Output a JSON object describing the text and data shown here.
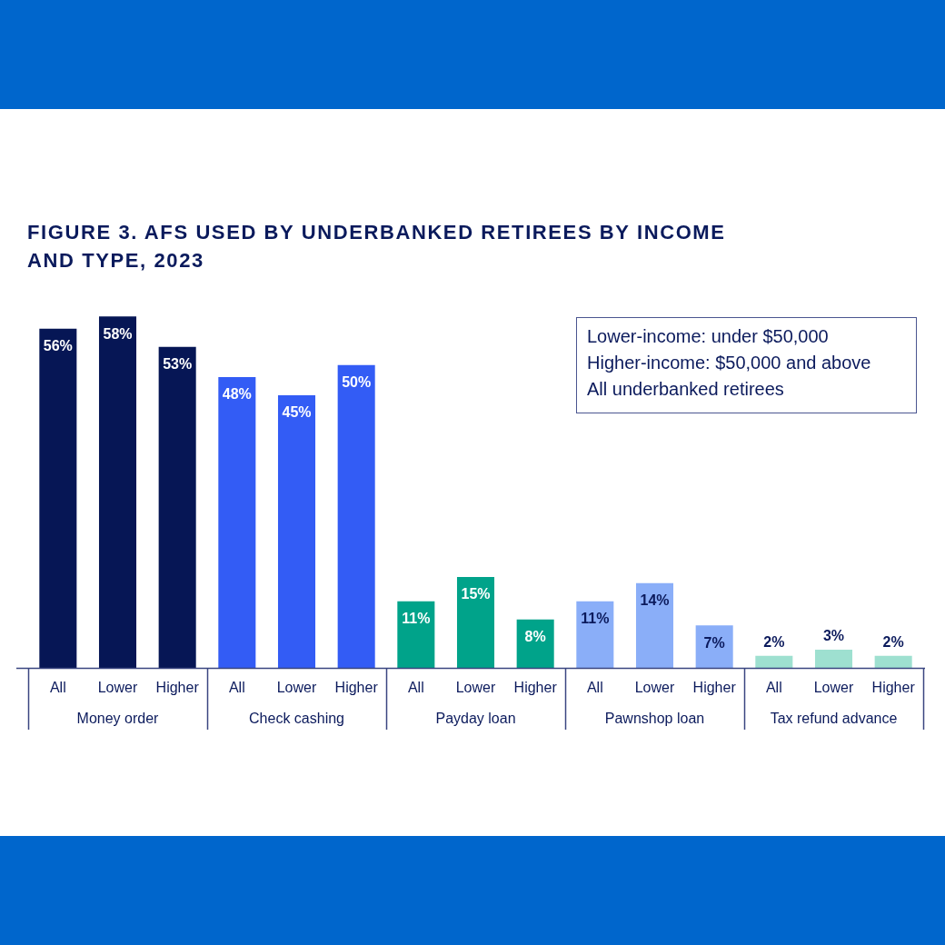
{
  "chart_data": {
    "type": "bar",
    "title": "FIGURE 3. AFS USED BY UNDERBANKED RETIREES BY INCOME AND TYPE, 2023",
    "categories": [
      "Money order",
      "Check cashing",
      "Payday loan",
      "Pawnshop loan",
      "Tax refund advance"
    ],
    "series": [
      {
        "name": "All",
        "colors": [
          "#061655",
          "#335cf5",
          "#00a38a",
          "#8aaef8",
          "#9ee0d0"
        ],
        "values": [
          56,
          48,
          11,
          11,
          2
        ],
        "value_labels": [
          "56%",
          "48%",
          "11%",
          "11%",
          "2%"
        ]
      },
      {
        "name": "Lower",
        "colors": [
          "#061655",
          "#335cf5",
          "#00a38a",
          "#8aaef8",
          "#9ee0d0"
        ],
        "values": [
          58,
          45,
          15,
          14,
          3
        ],
        "value_labels": [
          "58%",
          "45%",
          "15%",
          "14%",
          "3%"
        ]
      },
      {
        "name": "Higher",
        "colors": [
          "#061655",
          "#335cf5",
          "#00a38a",
          "#8aaef8",
          "#9ee0d0"
        ],
        "values": [
          53,
          50,
          8,
          7,
          2
        ],
        "value_labels": [
          "53%",
          "50%",
          "8%",
          "7%",
          "2%"
        ]
      }
    ],
    "annotations": [
      "Lower-income: under $50,000",
      "Higher-income: $50,000 and above",
      "All underbanked retirees"
    ]
  }
}
